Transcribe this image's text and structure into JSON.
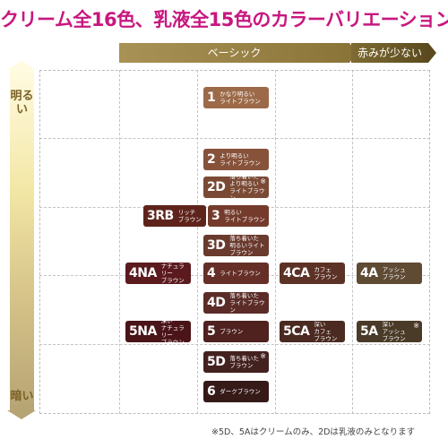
{
  "title": "クリーム全16色、乳液全15色のカラーバリエーション",
  "headers": {
    "basic": "ベーシック",
    "less_red": "赤みが少ない"
  },
  "scale": {
    "bright": "明るい",
    "dark": "暗い"
  },
  "chips": [
    {
      "code": "1",
      "name": "かなり明るい\nライトブラウン",
      "mark": "",
      "color": "#9c6a49"
    },
    {
      "code": "2",
      "name": "より明るい\nライトブラウン",
      "mark": "",
      "color": "#86523a"
    },
    {
      "code": "2D",
      "name": "落ち着いた\nより明るい\nライトブラウン",
      "mark": "※",
      "color": "#7a4a35"
    },
    {
      "code": "3RB",
      "name": "リッチ\nブラウン",
      "mark": "",
      "color": "#5e241b"
    },
    {
      "code": "3",
      "name": "明るい\nライトブラウン",
      "mark": "",
      "color": "#743b2c"
    },
    {
      "code": "3D",
      "name": "落ち着いた\n明るいライト\nブラウン",
      "mark": "",
      "color": "#6a3a2e"
    },
    {
      "code": "4NA",
      "name": "ナチュラリー\nブラウン",
      "mark": "",
      "color": "#5a1a1e"
    },
    {
      "code": "4",
      "name": "ライトブラウン",
      "mark": "",
      "color": "#652f27"
    },
    {
      "code": "4CA",
      "name": "カフェ\nブラウン",
      "mark": "",
      "color": "#5d3226"
    },
    {
      "code": "4A",
      "name": "アッシュ\nブラウン",
      "mark": "",
      "color": "#5f4a34"
    },
    {
      "code": "4D",
      "name": "落ち着いた\nライトブラウン",
      "mark": "",
      "color": "#5b2c27"
    },
    {
      "code": "5NA",
      "name": "深い\nナチュラリー\nブラウン",
      "mark": "",
      "color": "#4a1419"
    },
    {
      "code": "5",
      "name": "ブラウン",
      "mark": "",
      "color": "#4f211f"
    },
    {
      "code": "5CA",
      "name": "深い\nカフェ\nブラウン",
      "mark": "",
      "color": "#4a2a21"
    },
    {
      "code": "5A",
      "name": "深い\nアッシュ\nブラウン",
      "mark": "※",
      "color": "#4a3a28"
    },
    {
      "code": "5D",
      "name": "落ち着いた\nブラウン",
      "mark": "※",
      "color": "#43211f"
    },
    {
      "code": "6",
      "name": "ダークブラウン",
      "mark": "",
      "color": "#351a18"
    }
  ],
  "note": "※5D、5Aはクリームのみ、2Dは乳液のみとなります"
}
